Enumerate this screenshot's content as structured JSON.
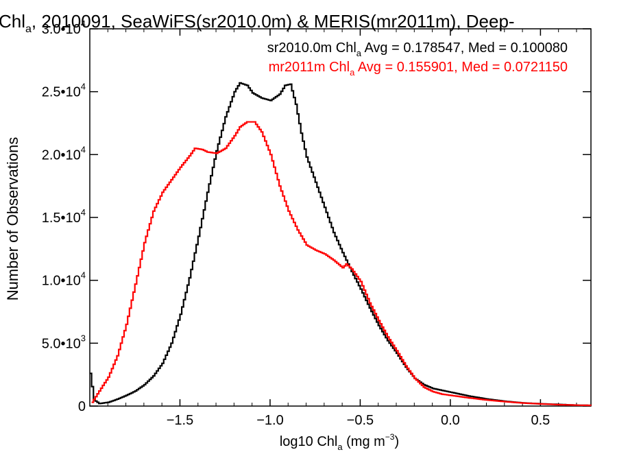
{
  "chart_data": {
    "type": "line",
    "title": {
      "pre": "Chl",
      "sub": "a",
      "post": ", 2010091, SeaWiFS(sr2010.0m) & MERIS(mr2011m), Deep-"
    },
    "xlabel": {
      "pre": "log10 Chl",
      "sub": "a",
      "mid": " (mg m",
      "sup": "−3",
      "post": ")"
    },
    "ylabel": "Number of Observations",
    "xlim": [
      -2.0,
      0.78
    ],
    "ylim": [
      0,
      30000
    ],
    "x_ticks": [
      {
        "value": -1.5,
        "label": "−1.5"
      },
      {
        "value": -1.0,
        "label": "−1.0"
      },
      {
        "value": -0.5,
        "label": "−0.5"
      },
      {
        "value": 0.0,
        "label": "0.0"
      },
      {
        "value": 0.5,
        "label": "0.5"
      }
    ],
    "y_ticks": [
      {
        "value": 0,
        "mant": "0",
        "exp": ""
      },
      {
        "value": 5000,
        "mant": "5.0•10",
        "exp": "3"
      },
      {
        "value": 10000,
        "mant": "1.0•10",
        "exp": "4"
      },
      {
        "value": 15000,
        "mant": "1.5•10",
        "exp": "4"
      },
      {
        "value": 20000,
        "mant": "2.0•10",
        "exp": "4"
      },
      {
        "value": 25000,
        "mant": "2.5•10",
        "exp": "4"
      },
      {
        "value": 30000,
        "mant": "3.0•10",
        "exp": "4"
      }
    ],
    "legend_position": "top-right",
    "series": [
      {
        "color": "#000000",
        "legend": {
          "pre": "sr2010.0m Chl",
          "sub": "a",
          "post": " Avg = 0.178547, Med = 0.100080"
        },
        "points": [
          [
            -2.0,
            2600
          ],
          [
            -1.98,
            500
          ],
          [
            -1.95,
            200
          ],
          [
            -1.9,
            300
          ],
          [
            -1.85,
            550
          ],
          [
            -1.8,
            850
          ],
          [
            -1.75,
            1200
          ],
          [
            -1.7,
            1700
          ],
          [
            -1.65,
            2400
          ],
          [
            -1.6,
            3400
          ],
          [
            -1.55,
            5000
          ],
          [
            -1.5,
            7300
          ],
          [
            -1.45,
            10200
          ],
          [
            -1.4,
            13500
          ],
          [
            -1.35,
            17000
          ],
          [
            -1.3,
            20300
          ],
          [
            -1.25,
            23000
          ],
          [
            -1.2,
            25000
          ],
          [
            -1.17,
            25700
          ],
          [
            -1.13,
            25500
          ],
          [
            -1.1,
            24900
          ],
          [
            -1.05,
            24500
          ],
          [
            -1.0,
            24300
          ],
          [
            -0.95,
            24800
          ],
          [
            -0.92,
            25500
          ],
          [
            -0.89,
            25600
          ],
          [
            -0.86,
            24000
          ],
          [
            -0.83,
            21700
          ],
          [
            -0.8,
            19800
          ],
          [
            -0.75,
            17800
          ],
          [
            -0.7,
            15800
          ],
          [
            -0.65,
            13800
          ],
          [
            -0.6,
            12200
          ],
          [
            -0.55,
            10700
          ],
          [
            -0.5,
            9300
          ],
          [
            -0.45,
            7800
          ],
          [
            -0.4,
            6400
          ],
          [
            -0.35,
            5200
          ],
          [
            -0.3,
            4200
          ],
          [
            -0.25,
            3100
          ],
          [
            -0.2,
            2200
          ],
          [
            -0.15,
            1700
          ],
          [
            -0.1,
            1400
          ],
          [
            -0.05,
            1250
          ],
          [
            0.0,
            1100
          ],
          [
            0.05,
            950
          ],
          [
            0.1,
            800
          ],
          [
            0.2,
            560
          ],
          [
            0.3,
            380
          ],
          [
            0.4,
            250
          ],
          [
            0.5,
            180
          ],
          [
            0.6,
            130
          ],
          [
            0.7,
            70
          ],
          [
            0.78,
            50
          ]
        ]
      },
      {
        "color": "#ff0000",
        "legend": {
          "pre": "mr2011m Chl",
          "sub": "a",
          "post": " Avg = 0.155901, Med = 0.0721150"
        },
        "points": [
          [
            -1.99,
            300
          ],
          [
            -1.95,
            1200
          ],
          [
            -1.9,
            2300
          ],
          [
            -1.85,
            4000
          ],
          [
            -1.8,
            6500
          ],
          [
            -1.75,
            9700
          ],
          [
            -1.7,
            13000
          ],
          [
            -1.65,
            15500
          ],
          [
            -1.6,
            17000
          ],
          [
            -1.55,
            18000
          ],
          [
            -1.5,
            19000
          ],
          [
            -1.45,
            19900
          ],
          [
            -1.42,
            20500
          ],
          [
            -1.38,
            20400
          ],
          [
            -1.35,
            20200
          ],
          [
            -1.3,
            20100
          ],
          [
            -1.25,
            20500
          ],
          [
            -1.2,
            21500
          ],
          [
            -1.17,
            22200
          ],
          [
            -1.13,
            22600
          ],
          [
            -1.09,
            22600
          ],
          [
            -1.05,
            21800
          ],
          [
            -1.0,
            20000
          ],
          [
            -0.95,
            17500
          ],
          [
            -0.9,
            15500
          ],
          [
            -0.85,
            14000
          ],
          [
            -0.8,
            12800
          ],
          [
            -0.75,
            12400
          ],
          [
            -0.7,
            12100
          ],
          [
            -0.65,
            11600
          ],
          [
            -0.6,
            11000
          ],
          [
            -0.58,
            11300
          ],
          [
            -0.55,
            10900
          ],
          [
            -0.5,
            9900
          ],
          [
            -0.45,
            8200
          ],
          [
            -0.4,
            6800
          ],
          [
            -0.35,
            5500
          ],
          [
            -0.3,
            4400
          ],
          [
            -0.25,
            3200
          ],
          [
            -0.2,
            2200
          ],
          [
            -0.15,
            1500
          ],
          [
            -0.1,
            1150
          ],
          [
            -0.05,
            950
          ],
          [
            0.0,
            850
          ],
          [
            0.05,
            750
          ],
          [
            0.1,
            650
          ],
          [
            0.2,
            480
          ],
          [
            0.3,
            350
          ],
          [
            0.4,
            240
          ],
          [
            0.5,
            170
          ],
          [
            0.6,
            110
          ],
          [
            0.7,
            70
          ],
          [
            0.78,
            50
          ]
        ]
      }
    ]
  }
}
